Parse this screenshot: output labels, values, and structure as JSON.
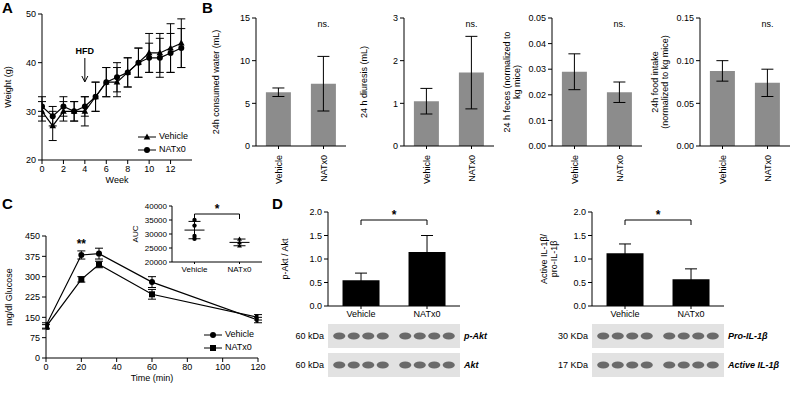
{
  "chart_data": [
    {
      "panel": "A",
      "type": "line",
      "xlabel": "Week",
      "ylabel": "Weight (g)",
      "x": [
        0,
        1,
        2,
        3,
        4,
        5,
        6,
        7,
        8,
        9,
        10,
        11,
        12,
        13
      ],
      "xlim": [
        0,
        14
      ],
      "xticks": [
        0,
        2,
        4,
        6,
        8,
        10,
        12
      ],
      "ylim": [
        20,
        50
      ],
      "yticks": [
        20,
        30,
        40,
        50
      ],
      "series": [
        {
          "name": "Vehicle",
          "color": "#000000",
          "marker": "triangle",
          "values": [
            30,
            27,
            30,
            30,
            30,
            33,
            36,
            36,
            38,
            40,
            42,
            42,
            43,
            44
          ],
          "errors": [
            2,
            3,
            2,
            2,
            3,
            3,
            3,
            3,
            3,
            3,
            4,
            4,
            5,
            5
          ]
        },
        {
          "name": "NATx0",
          "color": "#000000",
          "marker": "circle",
          "values": [
            31,
            29,
            31,
            30,
            31,
            33,
            36,
            37,
            38,
            40,
            41,
            41,
            42,
            43
          ],
          "errors": [
            2,
            2,
            2,
            2,
            2,
            3,
            3,
            3,
            3,
            3,
            3,
            4,
            4,
            4
          ]
        }
      ],
      "annotations": [
        {
          "text": "HFD",
          "x": 4
        }
      ],
      "legend": "lower right"
    },
    {
      "panel": "B",
      "charts": [
        {
          "type": "bar",
          "ylabel": "24h consumed water (mL)",
          "categories": [
            "Vehicle",
            "NATx0"
          ],
          "values": [
            6.3,
            7.3
          ],
          "errors": [
            0.5,
            3.2
          ],
          "color": "#8c8c8c",
          "ylim": [
            0,
            15
          ],
          "yticks": [
            0,
            5,
            10,
            15
          ],
          "annotations": [
            {
              "text": "ns.",
              "category": "NATx0"
            }
          ]
        },
        {
          "type": "bar",
          "ylabel": "24 h diuresis (mL)",
          "categories": [
            "Vehicle",
            "NATx0"
          ],
          "values": [
            1.05,
            1.72
          ],
          "errors": [
            0.3,
            0.85
          ],
          "color": "#8c8c8c",
          "ylim": [
            0,
            3
          ],
          "yticks": [
            0,
            1,
            2,
            3
          ],
          "annotations": [
            {
              "text": "ns.",
              "category": "NATx0"
            }
          ]
        },
        {
          "type": "bar",
          "ylabel": "24 h feces (normalized to kg mice)",
          "categories": [
            "Vehicle",
            "NATx0"
          ],
          "values": [
            0.029,
            0.021
          ],
          "errors": [
            0.007,
            0.004
          ],
          "color": "#8c8c8c",
          "ylim": [
            0,
            0.05
          ],
          "yticks": [
            {
              "value": 0,
              "label": "0.00"
            },
            0.01,
            0.02,
            0.03,
            0.04,
            0.05
          ],
          "annotations": [
            {
              "text": "ns.",
              "category": "NATx0"
            }
          ]
        },
        {
          "type": "bar",
          "ylabel": "24h food intake (normalized to kg mice)",
          "categories": [
            "Vehicle",
            "NATx0"
          ],
          "values": [
            0.088,
            0.074
          ],
          "errors": [
            0.012,
            0.016
          ],
          "color": "#8c8c8c",
          "ylim": [
            0,
            0.15
          ],
          "yticks": [
            {
              "value": 0,
              "label": "0.00"
            },
            0.05,
            {
              "value": 0.1,
              "label": "0.10"
            },
            0.15
          ],
          "annotations": [
            {
              "text": "ns.",
              "category": "NATx0"
            }
          ]
        }
      ]
    },
    {
      "panel": "C",
      "type": "line",
      "xlabel": "Time (min)",
      "ylabel": "mg/dl Glucose",
      "x": [
        0,
        20,
        30,
        60,
        120
      ],
      "xlim": [
        0,
        120
      ],
      "xticks": [
        0,
        20,
        40,
        60,
        80,
        100,
        120
      ],
      "ylim": [
        0,
        450
      ],
      "yticks": [
        0,
        75,
        150,
        225,
        300,
        375,
        450
      ],
      "series": [
        {
          "name": "Vehicle",
          "color": "#000000",
          "marker": "circle",
          "values": [
            120,
            380,
            385,
            280,
            140
          ],
          "errors": [
            10,
            15,
            20,
            20,
            10
          ]
        },
        {
          "name": "NATx0",
          "color": "#000000",
          "marker": "square",
          "values": [
            115,
            290,
            345,
            235,
            150
          ],
          "errors": [
            8,
            10,
            12,
            18,
            10
          ]
        }
      ],
      "annotations": [
        {
          "text": "**",
          "x": 20
        }
      ],
      "legend": "lower right",
      "inset": {
        "type": "scatter",
        "ylabel": "AUC",
        "ylim": [
          20000,
          40000
        ],
        "yticks": [
          20000,
          25000,
          30000,
          35000,
          40000
        ],
        "series": [
          {
            "name": "Vehicle",
            "color": "#000000",
            "marker": "circle",
            "values": [
              35000,
              33000,
              29300,
              28300
            ],
            "mean": 31400,
            "sd": 3100
          },
          {
            "name": "NATx0",
            "color": "#000000",
            "marker": "triangle",
            "values": [
              28200,
              27000,
              25800
            ],
            "mean": 27000,
            "sd": 1200
          }
        ],
        "annotations": [
          {
            "text": "*",
            "from": "Vehicle",
            "to": "NATx0"
          }
        ]
      }
    },
    {
      "panel": "D",
      "charts": [
        {
          "type": "bar",
          "ylabel": "p-Akt / Akt",
          "categories": [
            "Vehicle",
            "NATx0"
          ],
          "values": [
            0.55,
            1.15
          ],
          "errors": [
            0.15,
            0.35
          ],
          "color": "#000000",
          "ylim": [
            0,
            2
          ],
          "yticks": [
            {
              "value": 0,
              "label": "0.0"
            },
            0.5,
            {
              "value": 1,
              "label": "1.0"
            },
            1.5,
            {
              "value": 2,
              "label": "2.0"
            }
          ],
          "annotations": [
            {
              "text": "*",
              "from": "Vehicle",
              "to": "NATx0"
            }
          ],
          "blots": [
            {
              "size": "60 kDa",
              "label": "p-Akt"
            },
            {
              "size": "60 kDa",
              "label": "Akt"
            }
          ]
        },
        {
          "type": "bar",
          "ylabel": "Active IL-1β/ pro-IL-1β",
          "categories": [
            "Vehicle",
            "NATx0"
          ],
          "values": [
            1.12,
            0.57
          ],
          "errors": [
            0.2,
            0.22
          ],
          "color": "#000000",
          "ylim": [
            0,
            2
          ],
          "yticks": [
            {
              "value": 0,
              "label": "0.0"
            },
            0.5,
            {
              "value": 1,
              "label": "1.0"
            },
            1.5,
            {
              "value": 2,
              "label": "2.0"
            }
          ],
          "annotations": [
            {
              "text": "*",
              "from": "Vehicle",
              "to": "NATx0"
            }
          ],
          "blots": [
            {
              "size": "30 KDa",
              "label": "Pro-IL-1β"
            },
            {
              "size": "17 KDa",
              "label": "Active IL-1β"
            }
          ]
        }
      ]
    }
  ]
}
